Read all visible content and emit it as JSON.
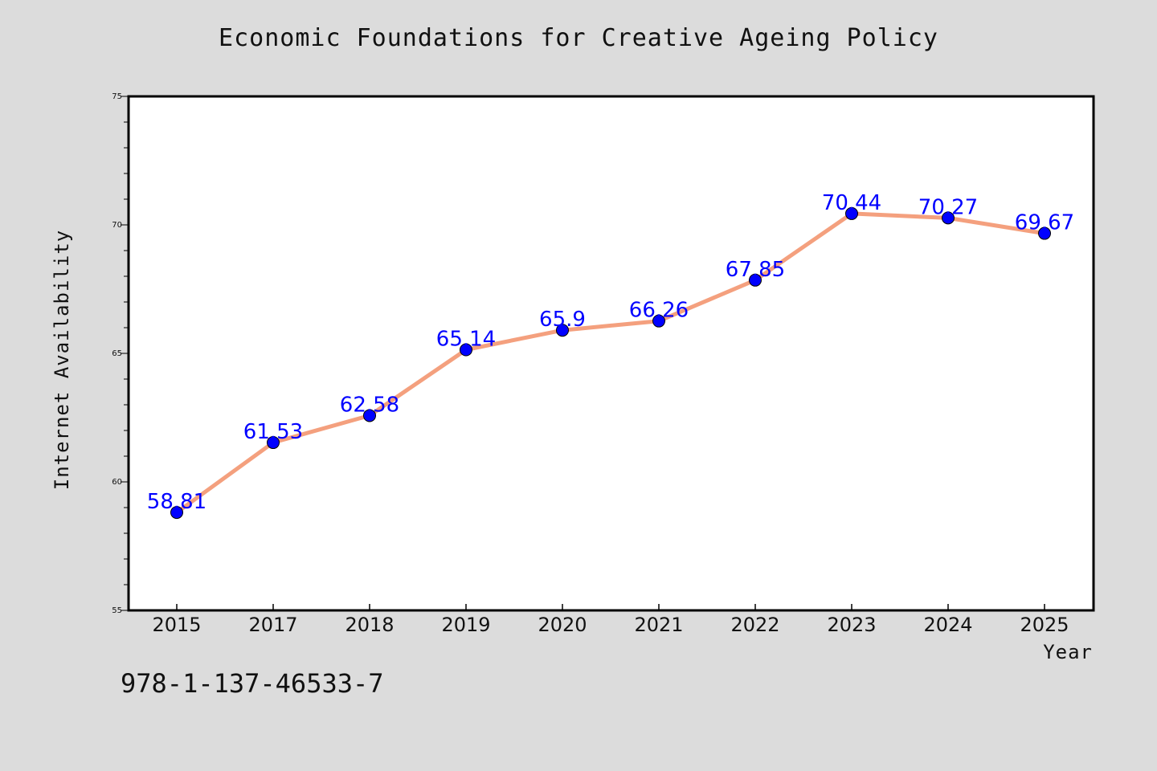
{
  "chart_data": {
    "type": "line",
    "title": "Economic Foundations for Creative Ageing Policy",
    "xlabel": "Year",
    "ylabel": "Internet Availability",
    "x": [
      "2015",
      "2017",
      "2018",
      "2019",
      "2020",
      "2021",
      "2022",
      "2023",
      "2024",
      "2025"
    ],
    "values": [
      58.81,
      61.53,
      62.58,
      65.14,
      65.9,
      66.26,
      67.85,
      70.44,
      70.27,
      69.67
    ],
    "data_labels": [
      "58.81",
      "61.53",
      "62.58",
      "65.14",
      "65.9",
      "66.26",
      "67.85",
      "70.44",
      "70.27",
      "69.67"
    ],
    "ylim": [
      55,
      75
    ],
    "yticks": [
      55,
      60,
      65,
      70,
      75
    ],
    "grid": false,
    "line_color": "#f4a07e",
    "marker_color": "#0000ff",
    "label_color": "#0000ff"
  },
  "footer": {
    "code": "978-1-137-46533-7"
  },
  "colors": {
    "background": "#dcdcdc",
    "plot_background": "#ffffff"
  }
}
